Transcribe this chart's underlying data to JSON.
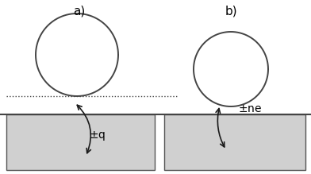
{
  "fig_width": 3.92,
  "fig_height": 2.19,
  "dpi": 100,
  "background_color": "#ffffff",
  "label_a": "a)",
  "label_b": "b)",
  "electrode_color": "#d0d0d0",
  "electrode_edge_color": "#555555",
  "line_color": "#444444",
  "arrow_color": "#1a1a1a",
  "font_size_labels": 10,
  "font_size_ab": 11
}
